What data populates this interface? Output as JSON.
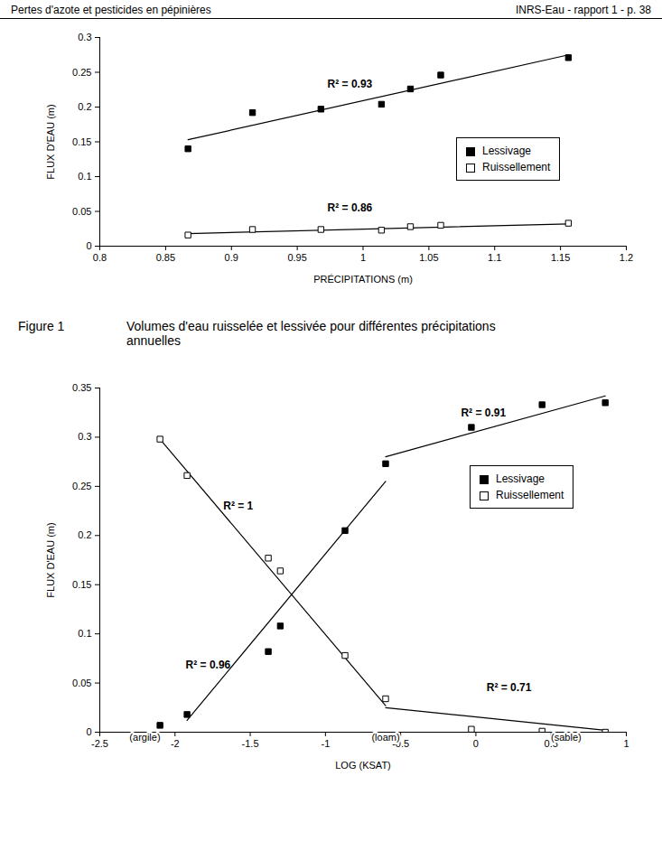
{
  "header": {
    "left": "Pertes d'azote et pesticides en pépinières",
    "right": "INRS-Eau - rapport 1 - p. 38"
  },
  "caption": {
    "label": "Figure 1",
    "text": "Volumes d'eau ruisselée et lessivée pour différentes précipitations annuelles"
  },
  "chart_data": [
    {
      "type": "scatter",
      "x_label": "PRÉCIPITATIONS (m)",
      "y_label": "FLUX D'EAU (m)",
      "xlim": [
        0.8,
        1.2
      ],
      "xticks": [
        0.8,
        0.85,
        0.9,
        0.95,
        1,
        1.05,
        1.1,
        1.15,
        1.2
      ],
      "ylim": [
        0,
        0.3
      ],
      "yticks": [
        0,
        0.05,
        0.1,
        0.15,
        0.2,
        0.25,
        0.3
      ],
      "legend": "right",
      "grid": false,
      "x": [
        0.867,
        0.916,
        0.968,
        1.014,
        1.036,
        1.059,
        1.156
      ],
      "series": [
        {
          "name": "Lessivage",
          "color": "#000000",
          "marker": "square",
          "values": [
            0.14,
            0.192,
            0.197,
            0.204,
            0.226,
            0.246,
            0.271
          ],
          "trendlines": [
            [
              [
                0.867,
                0.153
              ],
              [
                1.156,
                0.275
              ]
            ]
          ]
        },
        {
          "name": "Ruissellement",
          "color": "#000000",
          "marker": "square-open",
          "values": [
            0.016,
            0.024,
            0.024,
            0.023,
            0.028,
            0.03,
            0.033
          ],
          "trendlines": [
            [
              [
                0.867,
                0.018
              ],
              [
                1.156,
                0.032
              ]
            ]
          ]
        }
      ],
      "annotations": [
        {
          "text": "R² = 0.93",
          "x": 0.99,
          "y": 0.233
        },
        {
          "text": "R² = 0.86",
          "x": 0.99,
          "y": 0.055
        }
      ]
    },
    {
      "type": "scatter",
      "x_label": "LOG (KSAT)",
      "y_label": "FLUX D'EAU (m)",
      "xlim": [
        -2.5,
        1
      ],
      "xticks": [
        -2.5,
        -2,
        -1.5,
        -1,
        -0.5,
        0,
        0.5,
        1
      ],
      "ylim": [
        0,
        0.35
      ],
      "yticks": [
        0,
        0.05,
        0.1,
        0.15,
        0.2,
        0.25,
        0.3,
        0.35
      ],
      "legend": "right",
      "grid": false,
      "x": [
        -2.1,
        -1.92,
        -1.38,
        -1.3,
        -0.87,
        -0.6,
        -0.03,
        0.44,
        0.86
      ],
      "series": [
        {
          "name": "Lessivage",
          "color": "#000000",
          "marker": "square",
          "values": [
            0.007,
            0.018,
            0.082,
            0.108,
            0.205,
            0.273,
            0.31,
            0.333,
            0.335
          ],
          "trendlines": [
            [
              [
                -1.92,
                0.012
              ],
              [
                -0.6,
                0.255
              ]
            ],
            [
              [
                -0.6,
                0.28
              ],
              [
                0.86,
                0.342
              ]
            ]
          ]
        },
        {
          "name": "Ruissellement",
          "color": "#000000",
          "marker": "square-open",
          "values": [
            0.298,
            0.261,
            0.177,
            0.164,
            0.078,
            0.034,
            0.003,
            0.001,
            0
          ],
          "trendlines": [
            [
              [
                -2.1,
                0.298
              ],
              [
                -0.6,
                0.027
              ]
            ],
            [
              [
                -0.6,
                0.025
              ],
              [
                0.86,
                0.002
              ]
            ]
          ]
        }
      ],
      "annotations": [
        {
          "text": "R² = 0.91",
          "x": 0.05,
          "y": 0.325
        },
        {
          "text": "R² = 1",
          "x": -1.58,
          "y": 0.23
        },
        {
          "text": "R² = 0.96",
          "x": -1.78,
          "y": 0.068
        },
        {
          "text": "R² = 0.71",
          "x": 0.22,
          "y": 0.045
        }
      ],
      "axis_annotations": [
        {
          "text": "(argile)",
          "x": -2.2
        },
        {
          "text": "(loam)",
          "x": -0.6
        },
        {
          "text": "(sable)",
          "x": 0.6
        }
      ]
    }
  ]
}
